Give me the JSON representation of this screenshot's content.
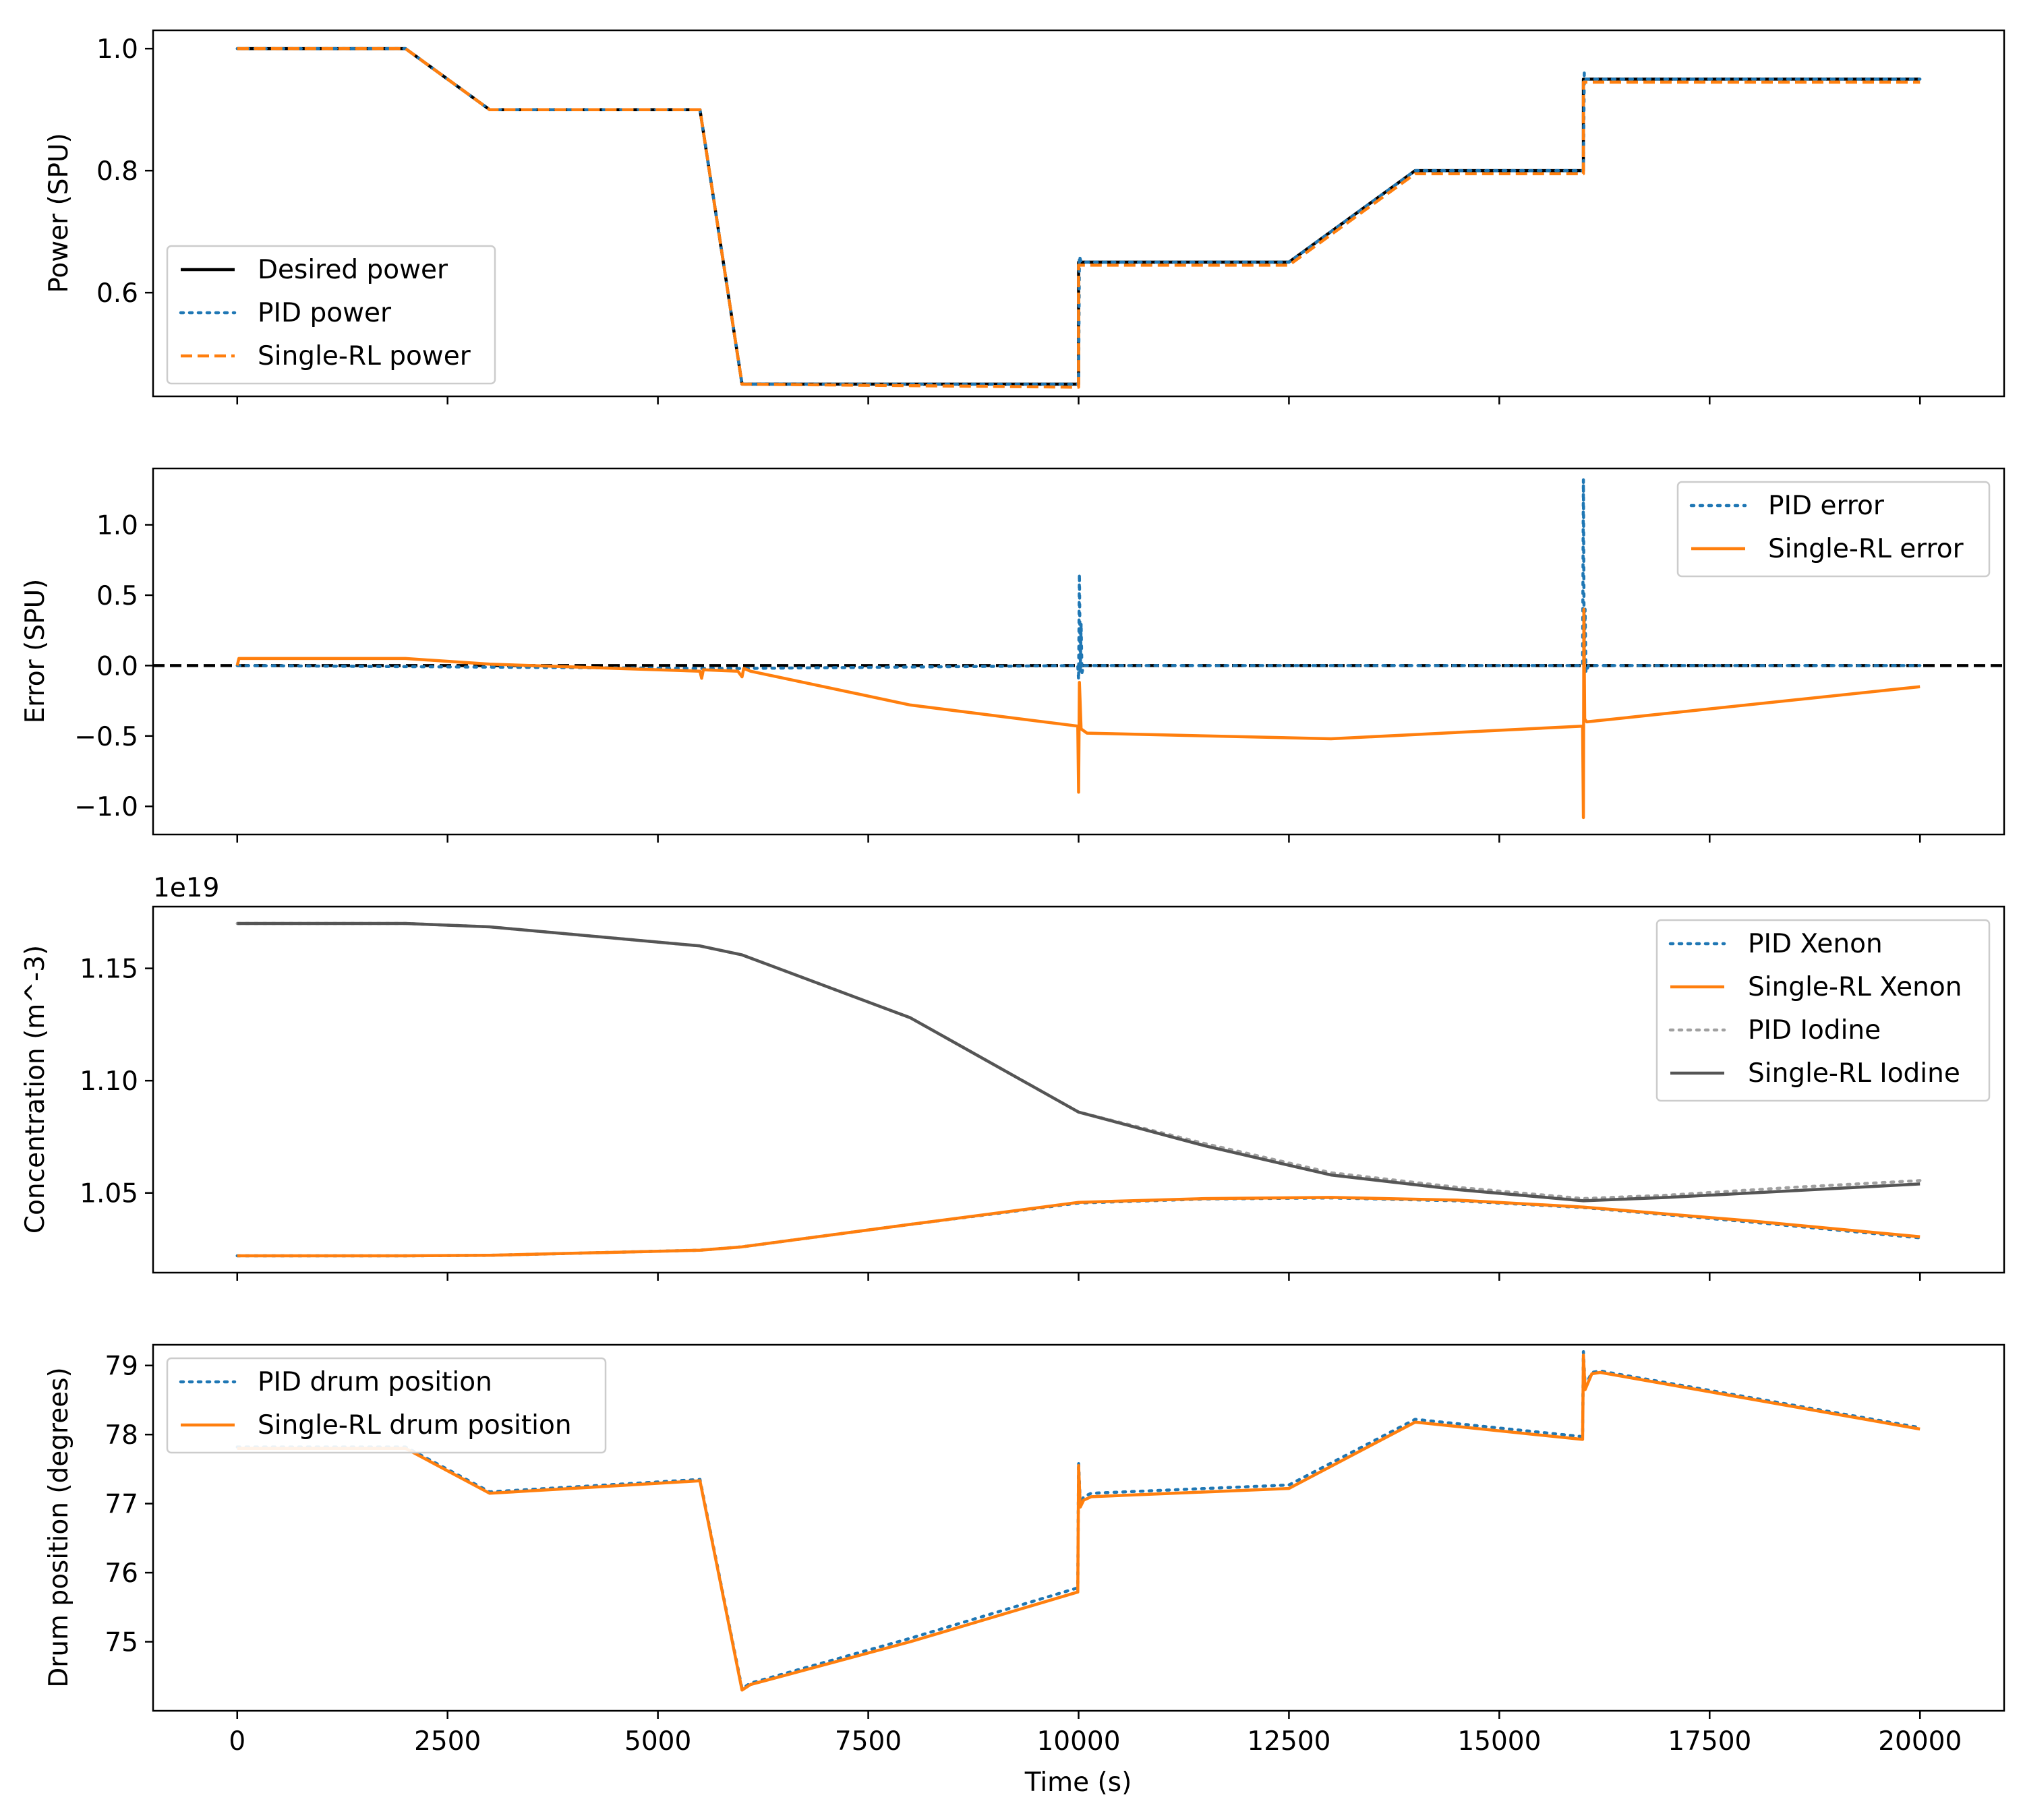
{
  "chart_data": [
    {
      "type": "line",
      "ylabel": "Power (SPU)",
      "xlabel": "",
      "xlim": [
        -1000,
        21000
      ],
      "ylim": [
        0.43,
        1.03
      ],
      "yticks": [
        0.6,
        0.8,
        1.0
      ],
      "yticklabels": [
        "0.6",
        "0.8",
        "1.0"
      ],
      "legend_position": "lower-left",
      "series": [
        {
          "name": "Desired power",
          "color": "#000000",
          "dash": "solid",
          "x": [
            0,
            2000,
            3000,
            5500,
            6000,
            10000,
            10000,
            12500,
            14000,
            16000,
            16000,
            20000
          ],
          "y": [
            1.0,
            1.0,
            0.9,
            0.9,
            0.45,
            0.45,
            0.65,
            0.65,
            0.8,
            0.8,
            0.95,
            0.95
          ]
        },
        {
          "name": "PID power",
          "color": "#1f77b4",
          "dash": "dotted",
          "x": [
            0,
            2000,
            3000,
            5500,
            6000,
            10000,
            10010,
            10030,
            12500,
            14000,
            16000,
            16010,
            16030,
            20000
          ],
          "y": [
            1.0,
            1.0,
            0.9,
            0.9,
            0.45,
            0.45,
            0.66,
            0.65,
            0.65,
            0.8,
            0.8,
            0.96,
            0.95,
            0.95
          ]
        },
        {
          "name": "Single-RL power",
          "color": "#ff7f0e",
          "dash": "dashed",
          "x": [
            0,
            2000,
            3000,
            5500,
            6000,
            10000,
            10000,
            12500,
            14000,
            16000,
            16000,
            20000
          ],
          "y": [
            1.0,
            1.0,
            0.9,
            0.9,
            0.45,
            0.445,
            0.645,
            0.645,
            0.795,
            0.795,
            0.945,
            0.945
          ]
        }
      ]
    },
    {
      "type": "line",
      "ylabel": "Error (SPU)",
      "xlabel": "",
      "xlim": [
        -1000,
        21000
      ],
      "ylim": [
        -1.2,
        1.4
      ],
      "yticks": [
        -1.0,
        -0.5,
        0.0,
        0.5,
        1.0
      ],
      "yticklabels": [
        "−1.0",
        "−0.5",
        "0.0",
        "0.5",
        "1.0"
      ],
      "reference_line": {
        "y": 0,
        "color": "#000000",
        "dash": "dashed"
      },
      "legend_position": "upper-right",
      "series": [
        {
          "name": "PID error",
          "color": "#1f77b4",
          "dash": "dotted",
          "x": [
            0,
            5500,
            6000,
            9990,
            10000,
            10010,
            10020,
            10030,
            10040,
            10060,
            15990,
            16000,
            16010,
            16020,
            16030,
            16060,
            20000
          ],
          "y": [
            0.0,
            -0.02,
            -0.02,
            0.0,
            -0.1,
            0.65,
            -0.05,
            0.3,
            -0.05,
            0.0,
            0.0,
            1.32,
            -0.05,
            0.4,
            -0.05,
            0.0,
            0.0
          ]
        },
        {
          "name": "Single-RL error",
          "color": "#ff7f0e",
          "dash": "solid",
          "x": [
            0,
            20,
            2000,
            3000,
            5500,
            5520,
            5540,
            5950,
            6000,
            6020,
            6100,
            8000,
            9990,
            10000,
            10010,
            10030,
            10100,
            13000,
            14000,
            15990,
            16000,
            16005,
            16015,
            16040,
            20000
          ],
          "y": [
            0.0,
            0.05,
            0.05,
            0.01,
            -0.04,
            -0.09,
            -0.03,
            -0.04,
            -0.08,
            -0.02,
            -0.04,
            -0.28,
            -0.43,
            -0.9,
            -0.12,
            -0.45,
            -0.48,
            -0.52,
            -0.49,
            -0.43,
            -1.08,
            0.4,
            -0.38,
            -0.4,
            -0.15
          ]
        }
      ]
    },
    {
      "type": "line",
      "ylabel": "Concentration (m^-3)",
      "xlabel": "",
      "offset_text": "1e19",
      "xlim": [
        -1000,
        21000
      ],
      "ylim": [
        1.0145,
        1.1775
      ],
      "yticks": [
        1.05,
        1.1,
        1.15
      ],
      "yticklabels": [
        "1.05",
        "1.10",
        "1.15"
      ],
      "legend_position": "upper-right",
      "series": [
        {
          "name": "PID Xenon",
          "color": "#1f77b4",
          "dash": "dotted",
          "x": [
            0,
            2000,
            3000,
            5500,
            6000,
            8000,
            10000,
            11500,
            13000,
            14500,
            16000,
            18000,
            20000
          ],
          "y": [
            1.022,
            1.022,
            1.0222,
            1.0245,
            1.026,
            1.036,
            1.0455,
            1.0473,
            1.0478,
            1.0465,
            1.0435,
            1.037,
            1.03
          ]
        },
        {
          "name": "Single-RL Xenon",
          "color": "#ff7f0e",
          "dash": "solid",
          "x": [
            0,
            2000,
            3000,
            5500,
            6000,
            8000,
            10000,
            11500,
            13000,
            14500,
            16000,
            18000,
            20000
          ],
          "y": [
            1.022,
            1.022,
            1.0222,
            1.0245,
            1.026,
            1.036,
            1.0458,
            1.0475,
            1.048,
            1.0468,
            1.0437,
            1.0375,
            1.0305
          ]
        },
        {
          "name": "PID Iodine",
          "color": "#a0a0a0",
          "dash": "dotted",
          "x": [
            0,
            2000,
            3000,
            5500,
            6000,
            8000,
            10000,
            11500,
            13000,
            14500,
            16000,
            17000,
            18500,
            20000
          ],
          "y": [
            1.17,
            1.17,
            1.1685,
            1.16,
            1.156,
            1.128,
            1.086,
            1.072,
            1.059,
            1.0525,
            1.0475,
            1.049,
            1.0525,
            1.0555
          ]
        },
        {
          "name": "Single-RL Iodine",
          "color": "#555555",
          "dash": "solid",
          "x": [
            0,
            2000,
            3000,
            5500,
            6000,
            8000,
            10000,
            11500,
            13000,
            14500,
            16000,
            17000,
            18500,
            20000
          ],
          "y": [
            1.17,
            1.17,
            1.1685,
            1.16,
            1.156,
            1.128,
            1.086,
            1.071,
            1.058,
            1.0515,
            1.0465,
            1.048,
            1.051,
            1.054
          ]
        }
      ]
    },
    {
      "type": "line",
      "ylabel": "Drum position (degrees)",
      "xlabel": "Time (s)",
      "xlim": [
        -1000,
        21000
      ],
      "ylim": [
        74.0,
        79.3
      ],
      "yticks": [
        75,
        76,
        77,
        78,
        79
      ],
      "yticklabels": [
        "75",
        "76",
        "77",
        "78",
        "79"
      ],
      "xticks": [
        0,
        2500,
        5000,
        7500,
        10000,
        12500,
        15000,
        17500,
        20000
      ],
      "xticklabels": [
        "0",
        "2500",
        "5000",
        "7500",
        "10000",
        "12500",
        "15000",
        "17500",
        "20000"
      ],
      "legend_position": "upper-left",
      "series": [
        {
          "name": "PID drum position",
          "color": "#1f77b4",
          "dash": "dotted",
          "x": [
            0,
            2000,
            3000,
            5500,
            6000,
            6100,
            8000,
            9990,
            10000,
            10020,
            10060,
            10150,
            12500,
            14000,
            15990,
            16000,
            16020,
            16100,
            16200,
            20000
          ],
          "y": [
            77.82,
            77.82,
            77.17,
            77.35,
            74.32,
            74.4,
            75.05,
            75.78,
            77.6,
            77.0,
            77.1,
            77.15,
            77.27,
            78.22,
            77.97,
            79.2,
            78.7,
            78.9,
            78.92,
            78.1
          ]
        },
        {
          "name": "Single-RL drum position",
          "color": "#ff7f0e",
          "dash": "solid",
          "x": [
            0,
            2000,
            3000,
            5500,
            6000,
            6100,
            8000,
            9990,
            10000,
            10020,
            10060,
            10150,
            12500,
            14000,
            15990,
            16000,
            16020,
            16100,
            16200,
            20000
          ],
          "y": [
            77.8,
            77.8,
            77.15,
            77.33,
            74.3,
            74.38,
            75.0,
            75.72,
            77.55,
            76.95,
            77.05,
            77.1,
            77.22,
            78.18,
            77.93,
            79.15,
            78.65,
            78.88,
            78.9,
            78.08
          ]
        }
      ]
    }
  ]
}
